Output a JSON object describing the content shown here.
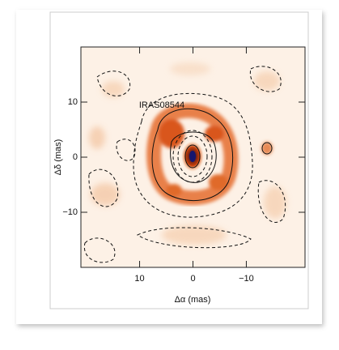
{
  "chart_data": {
    "type": "image",
    "annotation": "IRAS08544",
    "x_label": "Δα (mas)",
    "y_label": "Δδ (mas)",
    "xlim": [
      21,
      -21
    ],
    "ylim": [
      -20,
      20
    ],
    "xticks": [
      10,
      0,
      {
        "value": -10,
        "label": "−10"
      }
    ],
    "yticks": [
      {
        "value": -10,
        "label": "−10"
      },
      0,
      10
    ]
  }
}
